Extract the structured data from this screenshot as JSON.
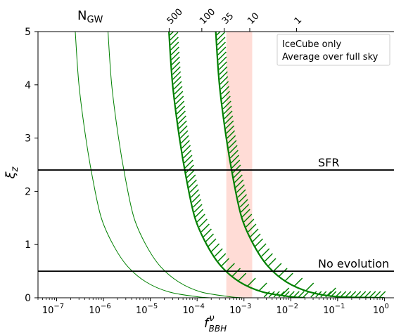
{
  "chart_data": {
    "type": "line",
    "xlabel": "f",
    "xlabel_sup": "ν",
    "xlabel_sub": "BBH",
    "ylabel": "ξ",
    "ylabel_sub": "z",
    "x_scale": "log",
    "xlim": [
      4e-08,
      1.6
    ],
    "ylim": [
      0,
      5
    ],
    "x_ticks": [
      {
        "value": 1e-07,
        "base": "10",
        "exp": "−7"
      },
      {
        "value": 1e-06,
        "base": "10",
        "exp": "−6"
      },
      {
        "value": 1e-05,
        "base": "10",
        "exp": "−5"
      },
      {
        "value": 0.0001,
        "base": "10",
        "exp": "−4"
      },
      {
        "value": 0.001,
        "base": "10",
        "exp": "−3"
      },
      {
        "value": 0.01,
        "base": "10",
        "exp": "−2"
      },
      {
        "value": 0.1,
        "base": "10",
        "exp": "−1"
      },
      {
        "value": 1,
        "base": "10",
        "exp": "0"
      }
    ],
    "y_ticks": [
      0,
      1,
      2,
      3,
      4,
      5
    ],
    "top_axis": {
      "label": "N",
      "label_sub": "GW",
      "ticks": [
        {
          "label": "500",
          "x": 2.53e-05
        },
        {
          "label": "100",
          "x": 0.000126
        },
        {
          "label": "35",
          "x": 0.00038
        },
        {
          "label": "10",
          "x": 0.00133
        },
        {
          "label": "1",
          "x": 0.0133
        }
      ]
    },
    "series": [
      {
        "style": "thin",
        "color": "#008000",
        "points": [
          [
            2.5e-07,
            5
          ],
          [
            3e-07,
            4.0
          ],
          [
            4.2e-07,
            3.0
          ],
          [
            6e-07,
            2.2
          ],
          [
            9e-07,
            1.5
          ],
          [
            1.6e-06,
            1.0
          ],
          [
            3.2e-06,
            0.6
          ],
          [
            8e-06,
            0.3
          ],
          [
            2.5e-05,
            0.11
          ],
          [
            0.0001,
            0.02
          ],
          [
            0.0002,
            0.0
          ]
        ]
      },
      {
        "style": "thin",
        "color": "#008000",
        "points": [
          [
            1.25e-06,
            5
          ],
          [
            1.5e-06,
            4.0
          ],
          [
            2.1e-06,
            3.0
          ],
          [
            3e-06,
            2.2
          ],
          [
            4.5e-06,
            1.5
          ],
          [
            8e-06,
            1.0
          ],
          [
            1.6e-05,
            0.6
          ],
          [
            4e-05,
            0.3
          ],
          [
            0.00012,
            0.11
          ],
          [
            0.0005,
            0.02
          ],
          [
            0.001,
            0.0
          ]
        ]
      },
      {
        "style": "hatched",
        "color": "#008000",
        "points": [
          [
            2.5e-05,
            5
          ],
          [
            3e-05,
            4.0
          ],
          [
            4.2e-05,
            3.0
          ],
          [
            6e-05,
            2.2
          ],
          [
            9e-05,
            1.5
          ],
          [
            0.00016,
            1.0
          ],
          [
            0.00032,
            0.6
          ],
          [
            0.0008,
            0.3
          ],
          [
            0.0025,
            0.11
          ],
          [
            0.01,
            0.02
          ],
          [
            0.02,
            0.0
          ]
        ]
      },
      {
        "style": "hatched",
        "color": "#008000",
        "points": [
          [
            0.00025,
            5
          ],
          [
            0.0003,
            4.0
          ],
          [
            0.00042,
            3.0
          ],
          [
            0.0006,
            2.2
          ],
          [
            0.0009,
            1.5
          ],
          [
            0.0016,
            1.0
          ],
          [
            0.0032,
            0.6
          ],
          [
            0.008,
            0.3
          ],
          [
            0.025,
            0.11
          ],
          [
            0.1,
            0.02
          ],
          [
            1.0,
            0.0
          ]
        ]
      }
    ],
    "hlines": [
      {
        "y": 2.4,
        "label": "SFR"
      },
      {
        "y": 0.5,
        "label": "No evolution"
      }
    ],
    "band": {
      "x0": 0.00042,
      "x1": 0.0015,
      "color": "#ffd0c8"
    },
    "legend": {
      "position": "top-right",
      "lines": [
        "IceCube only",
        "Average over full sky"
      ]
    }
  }
}
